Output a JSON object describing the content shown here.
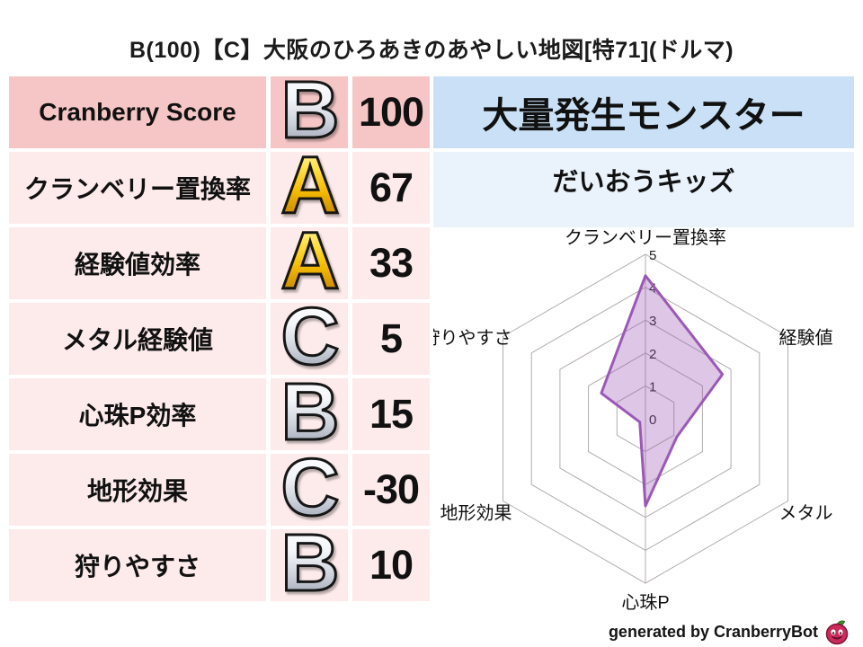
{
  "title": "B(100)【C】大阪のひろあきのあやしい地図[特71](ドルマ)",
  "score_table": {
    "rows": [
      {
        "label": "Cranberry Score",
        "grade": "B",
        "value": "100"
      },
      {
        "label": "クランベリー置換率",
        "grade": "A",
        "value": "67"
      },
      {
        "label": "経験値効率",
        "grade": "A",
        "value": "33"
      },
      {
        "label": "メタル経験値",
        "grade": "C",
        "value": "5"
      },
      {
        "label": "心珠P効率",
        "grade": "B",
        "value": "15"
      },
      {
        "label": "地形効果",
        "grade": "C",
        "value": "-30"
      },
      {
        "label": "狩りやすさ",
        "grade": "B",
        "value": "10"
      }
    ]
  },
  "monster_panel": {
    "header": "大量発生モンスター",
    "name": "だいおうキッズ"
  },
  "chart_data": {
    "type": "radar",
    "title": "",
    "axes": [
      "クランベリー置換率",
      "経験値",
      "メタル",
      "心珠P",
      "地形効果",
      "狩りやすさ"
    ],
    "values": [
      4.35,
      2.7,
      1.1,
      2.65,
      0.2,
      1.55
    ],
    "scale": {
      "min": 0,
      "max": 5,
      "ticks": [
        0,
        1,
        2,
        3,
        4,
        5
      ]
    },
    "grid_shape": "hexagon",
    "grid_color": "#b3acac",
    "series_color": "#9b59b6",
    "legend": "none"
  },
  "footer": {
    "credit": "generated by CranberryBot",
    "logo": "cranberry-icon"
  },
  "colors": {
    "header_row_bg": "#f6c6c6",
    "row_bg": "#fdeaea",
    "monster_header_bg": "#c9e0f6",
    "monster_name_bg": "#eaf2fb",
    "accent_purple": "#9b59b6",
    "grade_styles": {
      "S": "gold",
      "A": "gold",
      "B": "silver",
      "C": "silver",
      "D": "silver"
    }
  }
}
